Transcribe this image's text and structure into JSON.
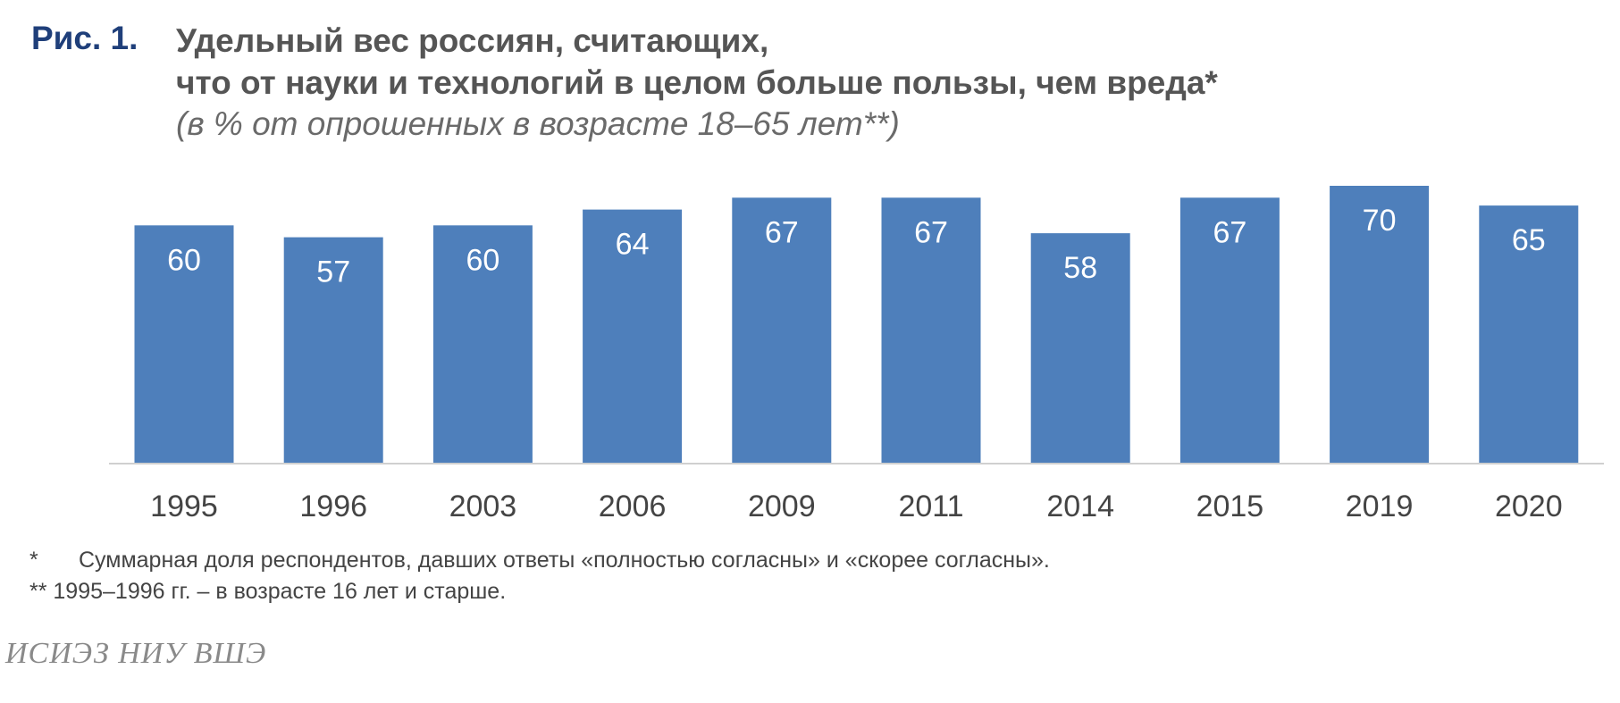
{
  "figure": {
    "label": "Рис. 1.",
    "title_line1": "Удельный вес россиян, считающих,",
    "title_line2": "что от науки и технологий в целом больше пользы, чем вреда*",
    "subtitle": "(в % от опрошенных в возрасте 18–65 лет**)"
  },
  "chart_data": {
    "type": "bar",
    "categories": [
      "1995",
      "1996",
      "2003",
      "2006",
      "2009",
      "2011",
      "2014",
      "2015",
      "2019",
      "2020"
    ],
    "values": [
      60,
      57,
      60,
      64,
      67,
      67,
      58,
      67,
      70,
      65
    ],
    "title": "Удельный вес россиян, считающих, что от науки и технологий в целом больше пользы, чем вреда*",
    "subtitle": "(в % от опрошенных в возрасте 18–65 лет**)",
    "xlabel": "",
    "ylabel": "",
    "ylim": [
      0,
      70
    ],
    "grid": false,
    "legend": "none",
    "data_labels": "inside-top",
    "colors": {
      "bar": "#4e7fbb",
      "bar_label": "#ffffff",
      "axis": "#d0d0d0",
      "tick_label": "#444444"
    }
  },
  "footnotes": {
    "fn1_mark": "*",
    "fn1_text": "Суммарная доля респондентов, давших ответы «полностью согласны» и «скорее согласны».",
    "fn2": "** 1995–1996 гг. – в возрасте 16 лет и старше."
  },
  "source": "ИСИЭЗ НИУ ВШЭ"
}
